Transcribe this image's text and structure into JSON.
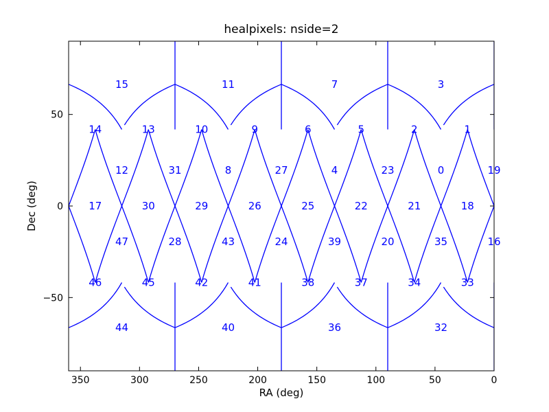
{
  "chart_data": {
    "type": "scatter",
    "title": "healpixels: nside=2",
    "xlabel": "RA (deg)",
    "ylabel": "Dec (deg)",
    "xlim": [
      360,
      0
    ],
    "ylim": [
      -90,
      90
    ],
    "x_ticks": [
      350,
      300,
      250,
      200,
      150,
      100,
      50,
      0
    ],
    "y_ticks": [
      50,
      0,
      -50
    ],
    "y_tick_labels": [
      "50",
      "0",
      "−50"
    ],
    "line_color": "#0000ff",
    "grid": false,
    "pixels": [
      {
        "id": "15",
        "ra": 315,
        "dec": 66.4
      },
      {
        "id": "11",
        "ra": 225,
        "dec": 66.4
      },
      {
        "id": "7",
        "ra": 135,
        "dec": 66.4
      },
      {
        "id": "3",
        "ra": 45,
        "dec": 66.4
      },
      {
        "id": "14",
        "ra": 337.5,
        "dec": 41.8
      },
      {
        "id": "13",
        "ra": 292.5,
        "dec": 41.8
      },
      {
        "id": "10",
        "ra": 247.5,
        "dec": 41.8
      },
      {
        "id": "9",
        "ra": 202.5,
        "dec": 41.8
      },
      {
        "id": "6",
        "ra": 157.5,
        "dec": 41.8
      },
      {
        "id": "5",
        "ra": 112.5,
        "dec": 41.8
      },
      {
        "id": "2",
        "ra": 67.5,
        "dec": 41.8
      },
      {
        "id": "1",
        "ra": 22.5,
        "dec": 41.8
      },
      {
        "id": "12",
        "ra": 315,
        "dec": 19.5
      },
      {
        "id": "31",
        "ra": 270,
        "dec": 19.5
      },
      {
        "id": "8",
        "ra": 225,
        "dec": 19.5
      },
      {
        "id": "27",
        "ra": 180,
        "dec": 19.5
      },
      {
        "id": "4",
        "ra": 135,
        "dec": 19.5
      },
      {
        "id": "23",
        "ra": 90,
        "dec": 19.5
      },
      {
        "id": "0",
        "ra": 45,
        "dec": 19.5
      },
      {
        "id": "19",
        "ra": 0,
        "dec": 19.5
      },
      {
        "id": "17",
        "ra": 337.5,
        "dec": 0
      },
      {
        "id": "30",
        "ra": 292.5,
        "dec": 0
      },
      {
        "id": "29",
        "ra": 247.5,
        "dec": 0
      },
      {
        "id": "26",
        "ra": 202.5,
        "dec": 0
      },
      {
        "id": "25",
        "ra": 157.5,
        "dec": 0
      },
      {
        "id": "22",
        "ra": 112.5,
        "dec": 0
      },
      {
        "id": "21",
        "ra": 67.5,
        "dec": 0
      },
      {
        "id": "18",
        "ra": 22.5,
        "dec": 0
      },
      {
        "id": "47",
        "ra": 315,
        "dec": -19.5
      },
      {
        "id": "28",
        "ra": 270,
        "dec": -19.5
      },
      {
        "id": "43",
        "ra": 225,
        "dec": -19.5
      },
      {
        "id": "24",
        "ra": 180,
        "dec": -19.5
      },
      {
        "id": "39",
        "ra": 135,
        "dec": -19.5
      },
      {
        "id": "20",
        "ra": 90,
        "dec": -19.5
      },
      {
        "id": "35",
        "ra": 45,
        "dec": -19.5
      },
      {
        "id": "16",
        "ra": 0,
        "dec": -19.5
      },
      {
        "id": "46",
        "ra": 337.5,
        "dec": -41.8
      },
      {
        "id": "45",
        "ra": 292.5,
        "dec": -41.8
      },
      {
        "id": "42",
        "ra": 247.5,
        "dec": -41.8
      },
      {
        "id": "41",
        "ra": 202.5,
        "dec": -41.8
      },
      {
        "id": "38",
        "ra": 157.5,
        "dec": -41.8
      },
      {
        "id": "37",
        "ra": 112.5,
        "dec": -41.8
      },
      {
        "id": "34",
        "ra": 67.5,
        "dec": -41.8
      },
      {
        "id": "33",
        "ra": 22.5,
        "dec": -41.8
      },
      {
        "id": "44",
        "ra": 315,
        "dec": -66.4
      },
      {
        "id": "40",
        "ra": 225,
        "dec": -66.4
      },
      {
        "id": "36",
        "ra": 135,
        "dec": -66.4
      },
      {
        "id": "32",
        "ra": 45,
        "dec": -66.4
      }
    ]
  }
}
